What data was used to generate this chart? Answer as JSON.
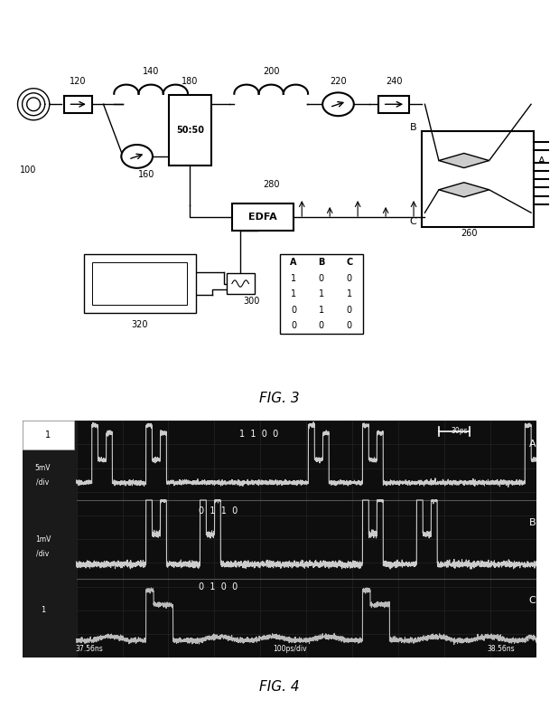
{
  "fig3": {
    "title": "FIG. 3"
  },
  "fig4": {
    "title": "FIG. 4",
    "osc_bg": "#111111",
    "trace_color_A": "#dddddd",
    "trace_color_B": "#cccccc",
    "trace_color_C": "#bbbbbb",
    "text_A": "1  1  0  0",
    "text_B": "0  1  1  0",
    "text_C": "0  1  0  0",
    "bottom_left": "37.56ns",
    "bottom_mid": "100ps/div",
    "bottom_right": "38.56ns",
    "left_A": "5mV\n/div",
    "left_B": "1mV\n/div",
    "scale_bar": "30ps"
  }
}
